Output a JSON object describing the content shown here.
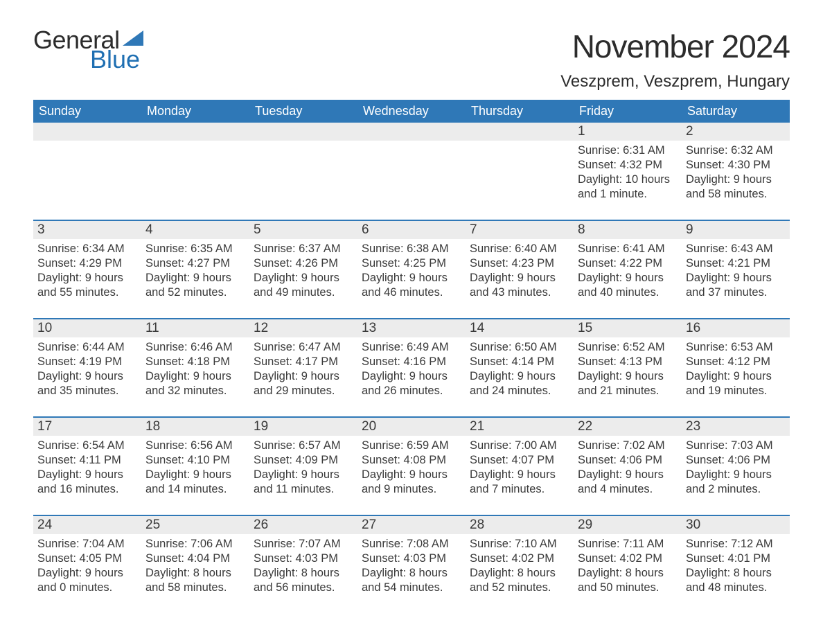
{
  "logo": {
    "general": "General",
    "blue": "Blue",
    "triangle_color": "#2f78b7"
  },
  "title": "November 2024",
  "location": "Veszprem, Veszprem, Hungary",
  "colors": {
    "header_bg": "#2f78b7",
    "header_text": "#ffffff",
    "daynum_bg": "#ececec",
    "row_divider": "#2f78b7",
    "text": "#3a3a3a",
    "logo_blue": "#1f6fb2"
  },
  "fonts": {
    "title_size": 46,
    "location_size": 24,
    "weekday_size": 18,
    "daynum_size": 19,
    "body_size": 16.5
  },
  "weekdays": [
    "Sunday",
    "Monday",
    "Tuesday",
    "Wednesday",
    "Thursday",
    "Friday",
    "Saturday"
  ],
  "weeks": [
    [
      null,
      null,
      null,
      null,
      null,
      {
        "n": "1",
        "sunrise": "6:31 AM",
        "sunset": "4:32 PM",
        "daylight": "10 hours and 1 minute."
      },
      {
        "n": "2",
        "sunrise": "6:32 AM",
        "sunset": "4:30 PM",
        "daylight": "9 hours and 58 minutes."
      }
    ],
    [
      {
        "n": "3",
        "sunrise": "6:34 AM",
        "sunset": "4:29 PM",
        "daylight": "9 hours and 55 minutes."
      },
      {
        "n": "4",
        "sunrise": "6:35 AM",
        "sunset": "4:27 PM",
        "daylight": "9 hours and 52 minutes."
      },
      {
        "n": "5",
        "sunrise": "6:37 AM",
        "sunset": "4:26 PM",
        "daylight": "9 hours and 49 minutes."
      },
      {
        "n": "6",
        "sunrise": "6:38 AM",
        "sunset": "4:25 PM",
        "daylight": "9 hours and 46 minutes."
      },
      {
        "n": "7",
        "sunrise": "6:40 AM",
        "sunset": "4:23 PM",
        "daylight": "9 hours and 43 minutes."
      },
      {
        "n": "8",
        "sunrise": "6:41 AM",
        "sunset": "4:22 PM",
        "daylight": "9 hours and 40 minutes."
      },
      {
        "n": "9",
        "sunrise": "6:43 AM",
        "sunset": "4:21 PM",
        "daylight": "9 hours and 37 minutes."
      }
    ],
    [
      {
        "n": "10",
        "sunrise": "6:44 AM",
        "sunset": "4:19 PM",
        "daylight": "9 hours and 35 minutes."
      },
      {
        "n": "11",
        "sunrise": "6:46 AM",
        "sunset": "4:18 PM",
        "daylight": "9 hours and 32 minutes."
      },
      {
        "n": "12",
        "sunrise": "6:47 AM",
        "sunset": "4:17 PM",
        "daylight": "9 hours and 29 minutes."
      },
      {
        "n": "13",
        "sunrise": "6:49 AM",
        "sunset": "4:16 PM",
        "daylight": "9 hours and 26 minutes."
      },
      {
        "n": "14",
        "sunrise": "6:50 AM",
        "sunset": "4:14 PM",
        "daylight": "9 hours and 24 minutes."
      },
      {
        "n": "15",
        "sunrise": "6:52 AM",
        "sunset": "4:13 PM",
        "daylight": "9 hours and 21 minutes."
      },
      {
        "n": "16",
        "sunrise": "6:53 AM",
        "sunset": "4:12 PM",
        "daylight": "9 hours and 19 minutes."
      }
    ],
    [
      {
        "n": "17",
        "sunrise": "6:54 AM",
        "sunset": "4:11 PM",
        "daylight": "9 hours and 16 minutes."
      },
      {
        "n": "18",
        "sunrise": "6:56 AM",
        "sunset": "4:10 PM",
        "daylight": "9 hours and 14 minutes."
      },
      {
        "n": "19",
        "sunrise": "6:57 AM",
        "sunset": "4:09 PM",
        "daylight": "9 hours and 11 minutes."
      },
      {
        "n": "20",
        "sunrise": "6:59 AM",
        "sunset": "4:08 PM",
        "daylight": "9 hours and 9 minutes."
      },
      {
        "n": "21",
        "sunrise": "7:00 AM",
        "sunset": "4:07 PM",
        "daylight": "9 hours and 7 minutes."
      },
      {
        "n": "22",
        "sunrise": "7:02 AM",
        "sunset": "4:06 PM",
        "daylight": "9 hours and 4 minutes."
      },
      {
        "n": "23",
        "sunrise": "7:03 AM",
        "sunset": "4:06 PM",
        "daylight": "9 hours and 2 minutes."
      }
    ],
    [
      {
        "n": "24",
        "sunrise": "7:04 AM",
        "sunset": "4:05 PM",
        "daylight": "9 hours and 0 minutes."
      },
      {
        "n": "25",
        "sunrise": "7:06 AM",
        "sunset": "4:04 PM",
        "daylight": "8 hours and 58 minutes."
      },
      {
        "n": "26",
        "sunrise": "7:07 AM",
        "sunset": "4:03 PM",
        "daylight": "8 hours and 56 minutes."
      },
      {
        "n": "27",
        "sunrise": "7:08 AM",
        "sunset": "4:03 PM",
        "daylight": "8 hours and 54 minutes."
      },
      {
        "n": "28",
        "sunrise": "7:10 AM",
        "sunset": "4:02 PM",
        "daylight": "8 hours and 52 minutes."
      },
      {
        "n": "29",
        "sunrise": "7:11 AM",
        "sunset": "4:02 PM",
        "daylight": "8 hours and 50 minutes."
      },
      {
        "n": "30",
        "sunrise": "7:12 AM",
        "sunset": "4:01 PM",
        "daylight": "8 hours and 48 minutes."
      }
    ]
  ],
  "labels": {
    "sunrise": "Sunrise: ",
    "sunset": "Sunset: ",
    "daylight": "Daylight: "
  }
}
